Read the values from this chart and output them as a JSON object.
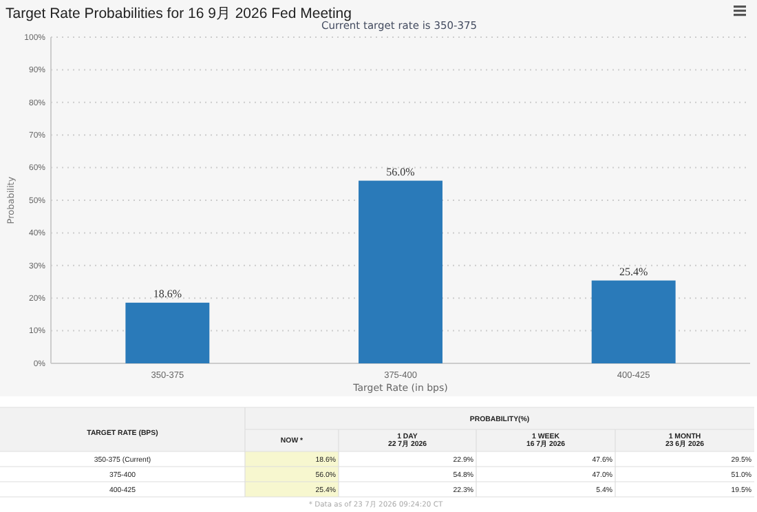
{
  "chart_data": [
    {
      "type": "bar",
      "title": "Target Rate Probabilities for 16 9月 2026 Fed Meeting",
      "subtitle": "Current target rate is 350-375",
      "xlabel": "Target Rate (in bps)",
      "ylabel": "Probability",
      "categories": [
        "350-375",
        "375-400",
        "400-425"
      ],
      "values": [
        18.6,
        56.0,
        25.4
      ],
      "value_labels": [
        "18.6%",
        "56.0%",
        "25.4%"
      ],
      "color": "#2a7ab9",
      "ylim": [
        0,
        100
      ],
      "yticks": [
        {
          "value": 0,
          "label": "0%"
        },
        {
          "value": 10,
          "label": "10%"
        },
        {
          "value": 20,
          "label": "20%"
        },
        {
          "value": 30,
          "label": "30%"
        },
        {
          "value": 40,
          "label": "40%"
        },
        {
          "value": 50,
          "label": "50%"
        },
        {
          "value": 60,
          "label": "60%"
        },
        {
          "value": 70,
          "label": "70%"
        },
        {
          "value": 80,
          "label": "80%"
        },
        {
          "value": 90,
          "label": "90%"
        },
        {
          "value": 100,
          "label": "100%"
        }
      ],
      "grid": "y",
      "legend": false
    },
    {
      "type": "other",
      "legend_title": "PROBABILITY(%)",
      "xlabel": "TARGET RATE (BPS)",
      "categories": [
        "350-375 (Current)",
        "375-400",
        "400-425"
      ],
      "series": [
        {
          "name": "NOW *",
          "color": "#f7f7cf",
          "values": [
            18.6,
            56.0,
            25.4
          ],
          "value_labels": [
            "18.6%",
            "56.0%",
            "25.4%"
          ]
        },
        {
          "name": "1 DAY\n22 7月 2026",
          "values": [
            22.9,
            54.8,
            22.3
          ],
          "value_labels": [
            "22.9%",
            "54.8%",
            "22.3%"
          ]
        },
        {
          "name": "1 WEEK\n16 7月 2026",
          "values": [
            47.6,
            47.0,
            5.4
          ],
          "value_labels": [
            "47.6%",
            "47.0%",
            "5.4%"
          ]
        },
        {
          "name": "1 MONTH\n23 6月 2026",
          "values": [
            29.5,
            51.0,
            19.5
          ],
          "value_labels": [
            "29.5%",
            "51.0%",
            "19.5%"
          ]
        }
      ],
      "annotations": [
        "* Data as of 23 7月 2026 09:24:20 CT"
      ]
    }
  ]
}
